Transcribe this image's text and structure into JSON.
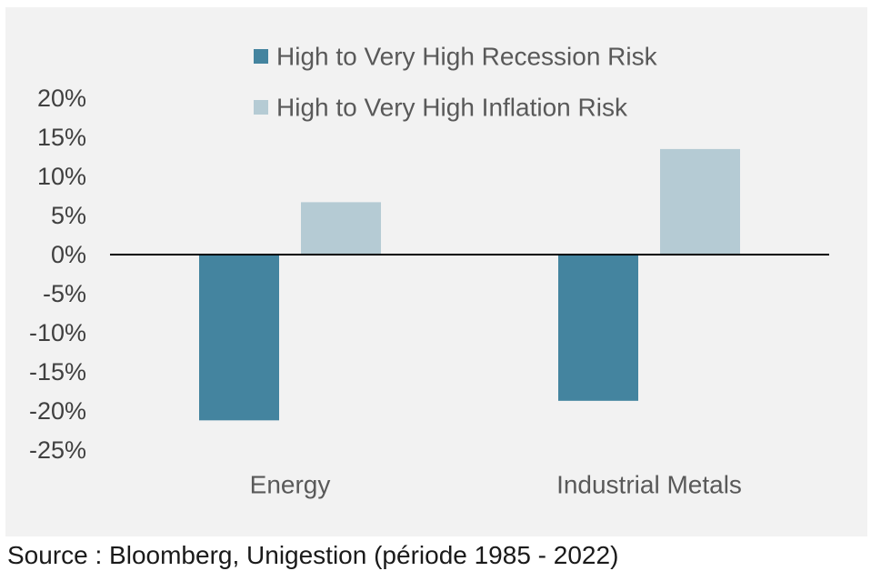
{
  "chart_data": {
    "type": "bar",
    "categories": [
      "Energy",
      "Industrial Metals"
    ],
    "series": [
      {
        "name": "High to Very High Recession Risk",
        "values": [
          -21.2,
          -18.7
        ],
        "color": "#44849f"
      },
      {
        "name": "High to Very High Inflation Risk",
        "values": [
          6.7,
          13.5
        ],
        "color": "#b5cbd4"
      }
    ],
    "ylim": [
      -25,
      20
    ],
    "yticks": [
      20,
      15,
      10,
      5,
      0,
      -5,
      -10,
      -15,
      -20,
      -25
    ],
    "ytick_labels": [
      "20%",
      "15%",
      "10%",
      "5%",
      "0%",
      "-5%",
      "-10%",
      "-15%",
      "-20%",
      "-25%"
    ],
    "title": "",
    "xlabel": "",
    "ylabel": "",
    "grid": false,
    "legend_position": "top-center"
  },
  "source_note": "Source : Bloomberg, Unigestion (période 1985 - 2022)",
  "colors": {
    "plot_background": "#f2f2f2",
    "zero_line": "#000000"
  }
}
